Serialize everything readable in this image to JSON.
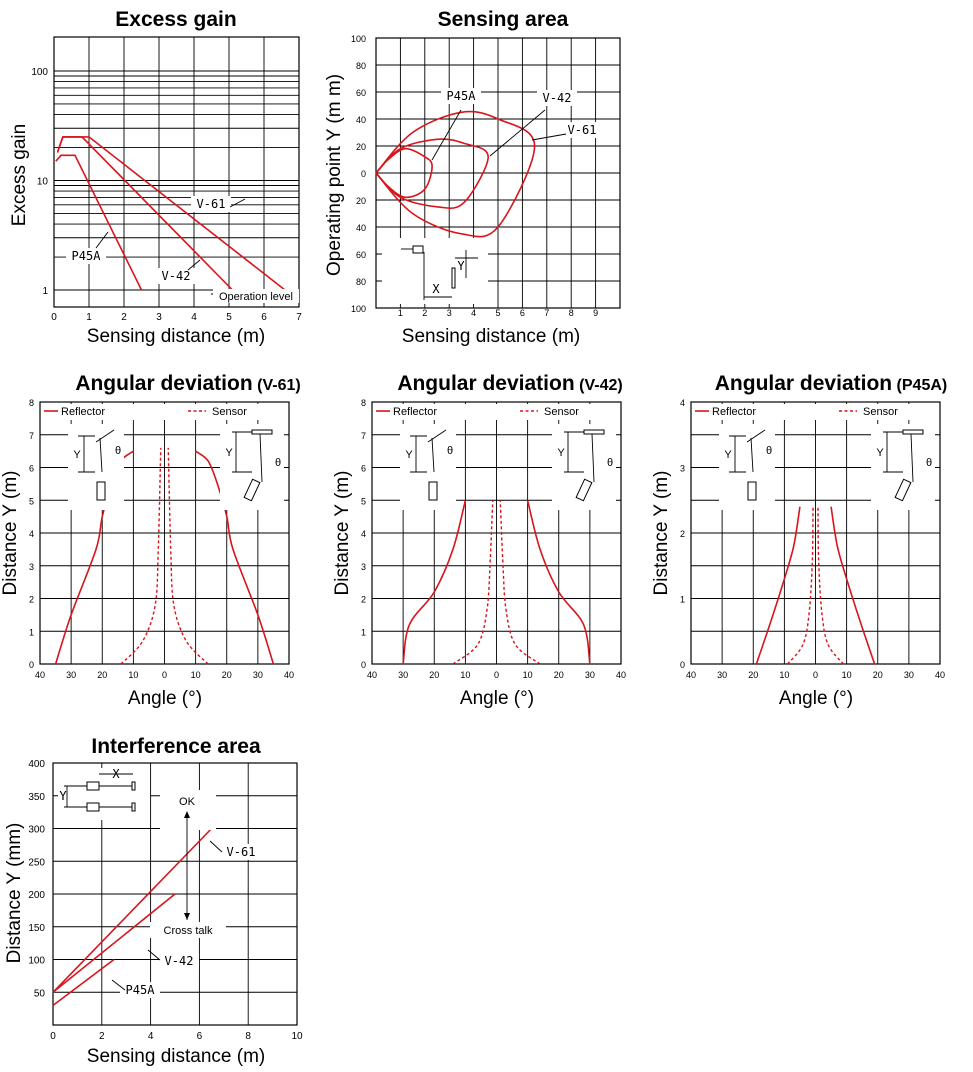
{
  "chart_data": [
    {
      "id": "excess_gain",
      "type": "line",
      "title": "Excess gain",
      "xlabel": "Sensing distance (m)",
      "ylabel": "Excess gain",
      "xlim": [
        0,
        7
      ],
      "ylim": [
        1,
        200
      ],
      "yscale": "log",
      "xticks": [
        "0",
        "1",
        "2",
        "3",
        "4",
        "5",
        "6",
        "7"
      ],
      "yticks": [
        "1",
        "10",
        "100"
      ],
      "annotation": "Operation level",
      "series": [
        {
          "name": "V-61",
          "x": [
            0.1,
            0.25,
            1.0,
            6.6
          ],
          "y": [
            18,
            25,
            25,
            1
          ]
        },
        {
          "name": "V-42",
          "x": [
            0.1,
            0.25,
            0.8,
            5.1
          ],
          "y": [
            18,
            25,
            25,
            1
          ]
        },
        {
          "name": "P45A",
          "x": [
            0.05,
            0.2,
            0.6,
            2.5
          ],
          "y": [
            15,
            17,
            17,
            1
          ]
        }
      ]
    },
    {
      "id": "sensing_area",
      "type": "line",
      "title": "Sensing area",
      "xlabel": "Sensing distance (m)",
      "ylabel": "Operating point Y (m m)",
      "xlim": [
        0,
        10
      ],
      "ylim": [
        -100,
        100
      ],
      "xticks": [
        "1",
        "2",
        "3",
        "4",
        "5",
        "6",
        "7",
        "8",
        "9"
      ],
      "yticks": [
        "100",
        "80",
        "60",
        "40",
        "20",
        "0",
        "20",
        "40",
        "60",
        "80",
        "100"
      ],
      "inset_labels": {
        "x": "X",
        "y": "Y"
      },
      "series": [
        {
          "name": "P45A",
          "x": [
            0,
            0.5,
            1.2,
            2.0,
            2.3,
            2.0,
            1.2,
            0.5,
            0
          ],
          "y": [
            0,
            10,
            18,
            12,
            5,
            -12,
            -18,
            -10,
            0
          ]
        },
        {
          "name": "V-42",
          "x": [
            0,
            1.0,
            2.5,
            3.6,
            4.6,
            3.6,
            2.5,
            1.0,
            0
          ],
          "y": [
            0,
            18,
            25,
            22,
            12,
            -22,
            -25,
            -18,
            0
          ]
        },
        {
          "name": "V-61",
          "x": [
            0,
            1.5,
            3.5,
            5.0,
            6.5,
            5.0,
            3.5,
            1.5,
            0
          ],
          "y": [
            0,
            30,
            45,
            40,
            20,
            -40,
            -45,
            -30,
            0
          ]
        }
      ]
    },
    {
      "id": "angular_v61",
      "type": "line",
      "title": "Angular deviation",
      "title_suffix": "(V-61)",
      "xlabel": "Angle (°)",
      "ylabel": "Distance Y (m)",
      "xlim": [
        -40,
        40
      ],
      "ylim": [
        0,
        8
      ],
      "xticks": [
        "40",
        "30",
        "20",
        "10",
        "0",
        "10",
        "20",
        "30",
        "40"
      ],
      "yticks": [
        "0",
        "1",
        "2",
        "3",
        "4",
        "5",
        "6",
        "7",
        "8"
      ],
      "legend": [
        "Reflector",
        "Sensor"
      ],
      "inset_labels": {
        "y": "Y",
        "angle": "θ"
      },
      "series": [
        {
          "name": "Reflector",
          "style": "solid",
          "x": [
            -35,
            -30,
            -22,
            -20,
            -17,
            -14,
            -10
          ],
          "y": [
            0,
            1.5,
            3.5,
            4.5,
            5.5,
            6.2,
            6.5
          ]
        },
        {
          "name": "Reflector",
          "style": "solid",
          "x": [
            35,
            30,
            22,
            20,
            17,
            14,
            10
          ],
          "y": [
            0,
            1.5,
            3.5,
            4.5,
            5.5,
            6.2,
            6.5
          ]
        },
        {
          "name": "Sensor",
          "style": "dashed",
          "x": [
            -14,
            -7,
            -3,
            -2,
            -1.2
          ],
          "y": [
            0,
            0.7,
            1.8,
            3.5,
            6.6
          ]
        },
        {
          "name": "Sensor",
          "style": "dashed",
          "x": [
            14,
            7,
            3,
            2,
            1.2
          ],
          "y": [
            0,
            0.7,
            1.8,
            3.5,
            6.6
          ]
        }
      ]
    },
    {
      "id": "angular_v42",
      "type": "line",
      "title": "Angular deviation",
      "title_suffix": "(V-42)",
      "xlabel": "Angle (°)",
      "ylabel": "Distance Y (m)",
      "xlim": [
        -40,
        40
      ],
      "ylim": [
        0,
        8
      ],
      "xticks": [
        "40",
        "30",
        "20",
        "10",
        "0",
        "10",
        "20",
        "30",
        "40"
      ],
      "yticks": [
        "0",
        "1",
        "2",
        "3",
        "4",
        "5",
        "6",
        "7",
        "8"
      ],
      "legend": [
        "Reflector",
        "Sensor"
      ],
      "inset_labels": {
        "y": "Y",
        "angle": "θ"
      },
      "series": [
        {
          "name": "Reflector",
          "style": "solid",
          "x": [
            -30,
            -28,
            -20,
            -14,
            -10
          ],
          "y": [
            0,
            1.2,
            2.2,
            3.5,
            5
          ]
        },
        {
          "name": "Reflector",
          "style": "solid",
          "x": [
            30,
            28,
            20,
            14,
            10
          ],
          "y": [
            0,
            1.2,
            2.2,
            3.5,
            5
          ]
        },
        {
          "name": "Sensor",
          "style": "dashed",
          "x": [
            -14,
            -6,
            -3,
            -2,
            -1.2
          ],
          "y": [
            0,
            0.6,
            1.7,
            3.2,
            5
          ]
        },
        {
          "name": "Sensor",
          "style": "dashed",
          "x": [
            14,
            6,
            3,
            2,
            1.2
          ],
          "y": [
            0,
            0.6,
            1.7,
            3.2,
            5
          ]
        }
      ]
    },
    {
      "id": "angular_p45a",
      "type": "line",
      "title": "Angular deviation",
      "title_suffix": "(P45A)",
      "xlabel": "Angle (°)",
      "ylabel": "Distance Y (m)",
      "xlim": [
        -40,
        40
      ],
      "ylim": [
        0,
        4
      ],
      "xticks": [
        "40",
        "30",
        "20",
        "10",
        "0",
        "10",
        "20",
        "30",
        "40"
      ],
      "yticks": [
        "0",
        "1",
        "2",
        "3",
        "4"
      ],
      "legend": [
        "Reflector",
        "Sensor"
      ],
      "inset_labels": {
        "y": "Y",
        "angle": "θ"
      },
      "series": [
        {
          "name": "Reflector",
          "style": "solid",
          "x": [
            -19,
            -14,
            -10,
            -7,
            -5
          ],
          "y": [
            0,
            0.7,
            1.3,
            1.8,
            2.4
          ]
        },
        {
          "name": "Reflector",
          "style": "solid",
          "x": [
            19,
            14,
            10,
            7,
            5
          ],
          "y": [
            0,
            0.7,
            1.3,
            1.8,
            2.4
          ]
        },
        {
          "name": "Sensor",
          "style": "dashed",
          "x": [
            -9,
            -4,
            -2,
            -1,
            -0.8
          ],
          "y": [
            0,
            0.3,
            0.8,
            1.6,
            2.4
          ]
        },
        {
          "name": "Sensor",
          "style": "dashed",
          "x": [
            9,
            4,
            2,
            1,
            0.8
          ],
          "y": [
            0,
            0.3,
            0.8,
            1.6,
            2.4
          ]
        }
      ]
    },
    {
      "id": "interference_area",
      "type": "line",
      "title": "Interference area",
      "xlabel": "Sensing distance (m)",
      "ylabel": "Distance Y (mm)",
      "xlim": [
        0,
        10
      ],
      "ylim": [
        0,
        400
      ],
      "xticks": [
        "0",
        "2",
        "4",
        "6",
        "8",
        "10"
      ],
      "yticks": [
        "50",
        "100",
        "150",
        "200",
        "250",
        "300",
        "350",
        "400"
      ],
      "annotations": [
        "OK",
        "Cross talk"
      ],
      "inset_labels": {
        "x": "X",
        "y": "Y"
      },
      "series": [
        {
          "name": "V-61",
          "x": [
            0,
            6.5
          ],
          "y": [
            50,
            300
          ]
        },
        {
          "name": "V-42",
          "x": [
            0,
            5
          ],
          "y": [
            50,
            200
          ]
        },
        {
          "name": "P45A",
          "x": [
            0,
            2.5
          ],
          "y": [
            30,
            100
          ]
        }
      ]
    }
  ]
}
